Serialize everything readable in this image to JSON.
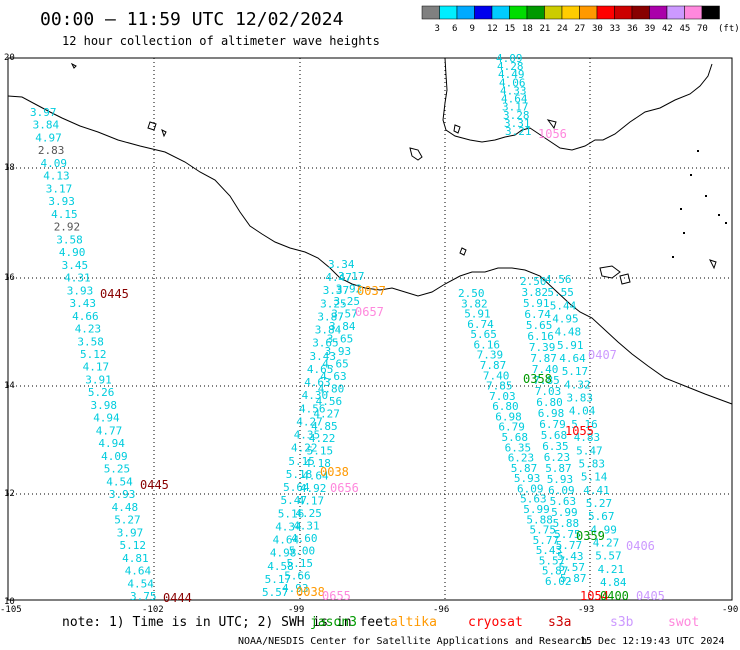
{
  "header": {
    "title": "00:00 – 11:59 UTC 12/02/2024",
    "subtitle": "12 hour collection of altimeter wave heights"
  },
  "legend": {
    "unit": "(ft)",
    "colors": [
      "#808080",
      "#00eeff",
      "#00aaff",
      "#0000ee",
      "#00ccff",
      "#00dd00",
      "#009900",
      "#cccc00",
      "#ffcc00",
      "#ff9900",
      "#ff0000",
      "#cc0000",
      "#880000",
      "#aa00aa",
      "#cc99ff",
      "#ff88dd",
      "#000000"
    ],
    "labels": [
      "3",
      "6",
      "9",
      "12",
      "15",
      "18",
      "21",
      "24",
      "27",
      "30",
      "33",
      "36",
      "39",
      "42",
      "45",
      "70"
    ]
  },
  "axes": {
    "lat_labels": [
      "20",
      "18",
      "16",
      "14",
      "12",
      "10"
    ],
    "lon_labels": [
      "-105",
      "-102",
      "-99",
      "-96",
      "-93",
      "-90"
    ]
  },
  "footer": {
    "note": "note: 1) Time is in UTC; 2) SWH is in feet",
    "credit": "NOAA/NESDIS Center for Satellite Applications and Research",
    "timestamp": "15 Dec 12:19:43 UTC 2024"
  },
  "satellites": [
    {
      "name": "jason3",
      "color": "#009900"
    },
    {
      "name": "altika",
      "color": "#ff9900"
    },
    {
      "name": "cryosat",
      "color": "#ff0000"
    },
    {
      "name": "s3a",
      "color": "#cc0000"
    },
    {
      "name": "s3b",
      "color": "#cc99ff"
    },
    {
      "name": "swot",
      "color": "#ff88dd"
    }
  ],
  "track_a": {
    "color": "#00ccdd",
    "values": [
      "3.97",
      "3.84",
      "4.97",
      "2.83",
      "4.09",
      "4.13",
      "3.17",
      "3.93",
      "4.15",
      "2.92",
      "3.58",
      "4.90",
      "3.45",
      "4.31",
      "3.93",
      "3.43",
      "4.66",
      "4.23",
      "3.58",
      "5.12",
      "4.17",
      "3.91",
      "5.26",
      "3.98",
      "4.94",
      "4.77",
      "4.94",
      "4.09",
      "5.25",
      "4.54",
      "3.93",
      "4.48",
      "5.27",
      "3.97",
      "5.12",
      "4.81",
      "4.64",
      "4.54",
      "3.75"
    ],
    "gray_index": [
      3,
      9
    ]
  },
  "track_b_values": [
    "3.34",
    "4.47",
    "3.37",
    "3.25",
    "3.87",
    "3.84",
    "3.65",
    "3.43",
    "4.65",
    "4.63",
    "4.30",
    "4.56",
    "4.27",
    "4.35",
    "4.22",
    "5.15",
    "5.18",
    "5.64",
    "5.47",
    "5.16",
    "4.34",
    "4.64",
    "4.98",
    "4.58",
    "5.17",
    "5.57"
  ],
  "track_b2_values": [
    "3.17",
    "3.92",
    "3.25",
    "3.57",
    "3.84",
    "3.65",
    "3.93",
    "4.65",
    "4.63",
    "4.80",
    "4.56",
    "4.27",
    "4.85",
    "4.22",
    "5.15",
    "4.18",
    "4.64",
    "4.92",
    "4.17",
    "4.25",
    "4.31",
    "4.60",
    "5.00",
    "5.15",
    "5.66",
    "4.93"
  ],
  "track_c_values": [
    "2.50",
    "3.82",
    "5.91",
    "6.74",
    "5.65",
    "6.16",
    "7.39",
    "7.87",
    "7.40",
    "7.85",
    "7.03",
    "6.80",
    "6.98",
    "6.79",
    "5.68",
    "6.35",
    "6.23",
    "5.87",
    "5.93",
    "6.09",
    "5.63",
    "5.99",
    "5.88",
    "5.75",
    "5.77",
    "5.43",
    "5.57",
    "5.87",
    "6.02"
  ],
  "track_d_values": [
    "4.56",
    "5.55",
    "5.44",
    "4.95",
    "4.48",
    "5.91",
    "4.64",
    "5.17",
    "4.32",
    "3.83",
    "4.04",
    "5.16",
    "4.83",
    "5.47",
    "5.83",
    "5.14",
    "4.41",
    "5.27",
    "5.67",
    "4.99",
    "4.27",
    "5.57",
    "4.21",
    "4.84"
  ],
  "top_track_values": [
    "4.09",
    "4.28",
    "4.49",
    "4.06",
    "4.33",
    "4.64",
    "3.17",
    "3.28",
    "3.31",
    "3.21"
  ],
  "time_labels": [
    {
      "text": "0445",
      "color": "#880000"
    },
    {
      "text": "0445",
      "color": "#880000"
    },
    {
      "text": "0444",
      "color": "#880000"
    },
    {
      "text": "0037",
      "color": "#ff9900"
    },
    {
      "text": "0657",
      "color": "#ff88dd"
    },
    {
      "text": "0038",
      "color": "#ff9900"
    },
    {
      "text": "0656",
      "color": "#ff88dd"
    },
    {
      "text": "0038",
      "color": "#ff9900"
    },
    {
      "text": "0655",
      "color": "#ff88dd"
    },
    {
      "text": "1056",
      "color": "#ff88dd"
    },
    {
      "text": "0407",
      "color": "#cc99ff"
    },
    {
      "text": "0358",
      "color": "#009900"
    },
    {
      "text": "1055",
      "color": "#ff0000"
    },
    {
      "text": "0359",
      "color": "#009900"
    },
    {
      "text": "0406",
      "color": "#cc99ff"
    },
    {
      "text": "1054",
      "color": "#ff0000"
    },
    {
      "text": "0400",
      "color": "#009900"
    },
    {
      "text": "0405",
      "color": "#cc99ff"
    }
  ]
}
